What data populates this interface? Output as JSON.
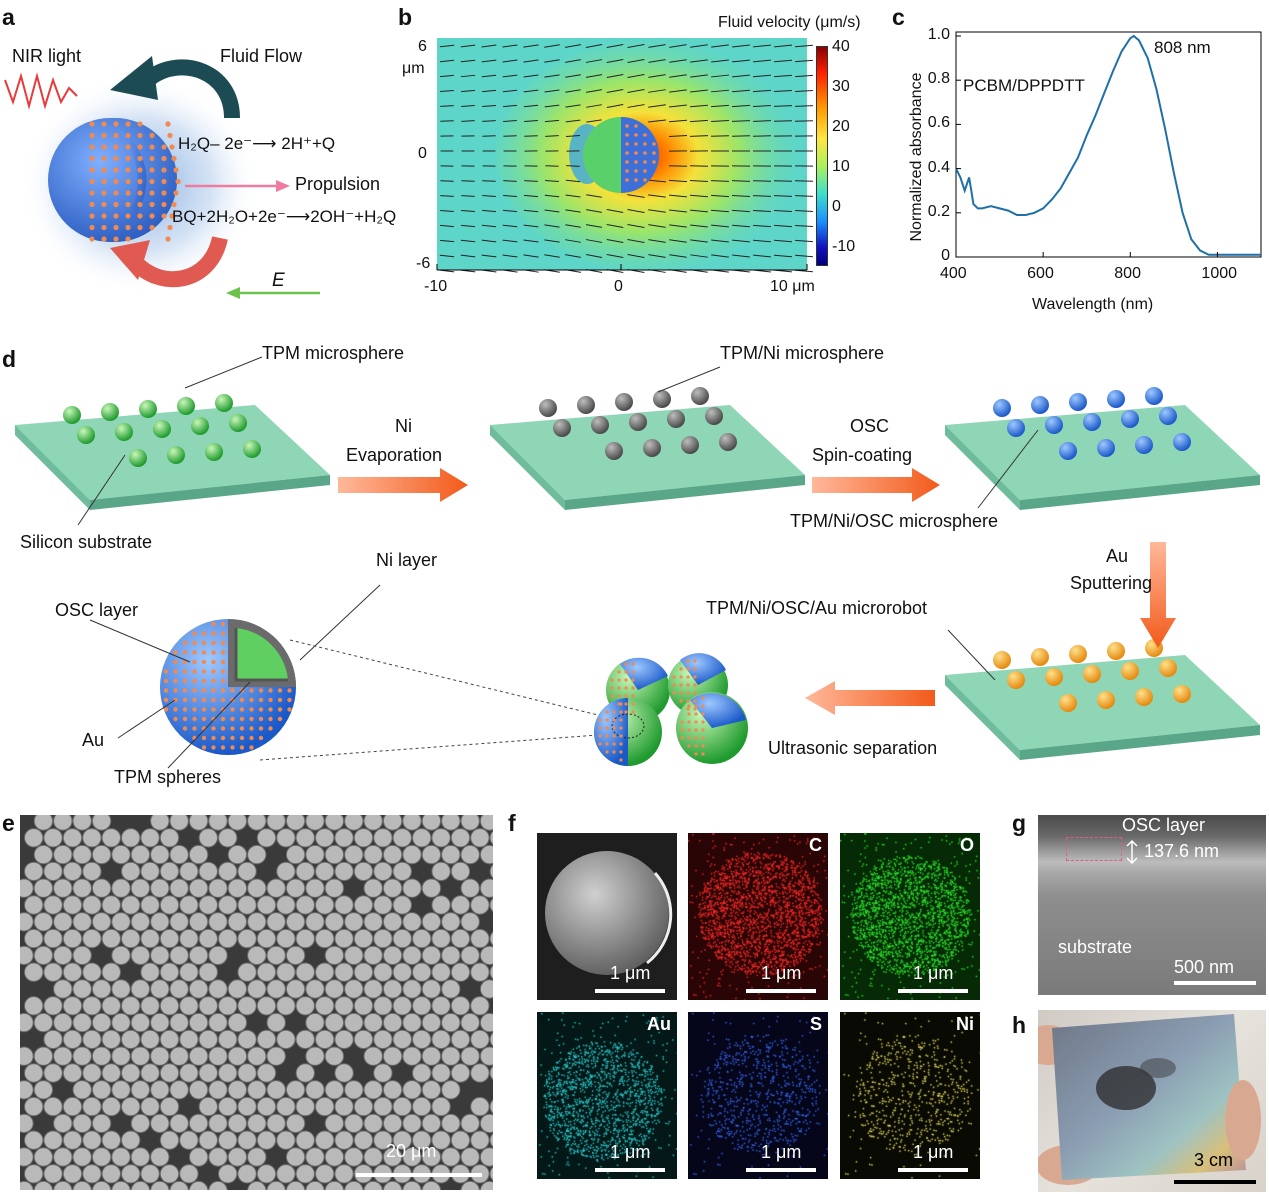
{
  "panels": {
    "a": {
      "label": "a",
      "nir": "NIR light",
      "flow": "Fluid Flow",
      "rxn1": "H₂Q– 2e⁻⟶ 2H⁺+Q",
      "propulsion": "Propulsion",
      "rxn2": "BQ+2H₂O+2e⁻⟶2OH⁻+H₂Q",
      "field": "E"
    },
    "b": {
      "label": "b",
      "colorbar_title": "Fluid velocity (μm/s)",
      "colorbar_ticks": [
        "40",
        "30",
        "20",
        "10",
        "0",
        "-10"
      ],
      "y_unit": "μm",
      "y_ticks": [
        "6",
        "0",
        "-6"
      ],
      "x_ticks": [
        "-10",
        "0",
        "10 μm"
      ]
    },
    "c": {
      "label": "c",
      "material": "PCBM/DPPDTT",
      "peak_label": "808 nm",
      "ylabel": "Normalized absorbance",
      "xlabel": "Wavelength (nm)",
      "y_ticks": [
        "1.0",
        "0.8",
        "0.6",
        "0.4",
        "0.2",
        "0"
      ],
      "x_ticks": [
        "400",
        "600",
        "800",
        "1000"
      ]
    },
    "d": {
      "label": "d",
      "tpm": "TPM microsphere",
      "silicon": "Silicon substrate",
      "ni_step_1": "Ni",
      "ni_step_2": "Evaporation",
      "tpm_ni": "TPM/Ni microsphere",
      "osc_step_1": "OSC",
      "osc_step_2": "Spin-coating",
      "tpm_ni_osc": "TPM/Ni/OSC microsphere",
      "au_step_1": "Au",
      "au_step_2": "Sputtering",
      "robot": "TPM/Ni/OSC/Au microrobot",
      "ultra": "Ultrasonic separation",
      "ni_layer": "Ni layer",
      "osc_layer": "OSC layer",
      "au": "Au",
      "tpm_spheres": "TPM spheres"
    },
    "e": {
      "label": "e",
      "scale": "20 μm"
    },
    "f": {
      "label": "f",
      "maps": [
        {
          "element": "",
          "scale": "1 μm"
        },
        {
          "element": "C",
          "scale": "1 μm"
        },
        {
          "element": "O",
          "scale": "1 μm"
        },
        {
          "element": "Au",
          "scale": "1 μm"
        },
        {
          "element": "S",
          "scale": "1 μm"
        },
        {
          "element": "Ni",
          "scale": "1 μm"
        }
      ]
    },
    "g": {
      "label": "g",
      "osc": "OSC layer",
      "thickness": "137.6 nm",
      "substrate": "substrate",
      "scale": "500 nm"
    },
    "h": {
      "label": "h",
      "scale": "3 cm"
    }
  },
  "chart_data": {
    "type": "line",
    "xlabel": "Wavelength (nm)",
    "ylabel": "Normalized absorbance",
    "xlim": [
      400,
      1100
    ],
    "ylim": [
      0,
      1.0
    ],
    "series": [
      {
        "name": "PCBM/DPPDTT",
        "x": [
          400,
          410,
          420,
          425,
          430,
          435,
          440,
          450,
          460,
          480,
          500,
          520,
          540,
          560,
          580,
          600,
          620,
          640,
          660,
          680,
          700,
          720,
          740,
          760,
          780,
          800,
          808,
          820,
          840,
          860,
          880,
          900,
          920,
          940,
          960,
          980,
          1000,
          1050,
          1100
        ],
        "y": [
          0.4,
          0.36,
          0.3,
          0.33,
          0.36,
          0.3,
          0.24,
          0.22,
          0.22,
          0.23,
          0.22,
          0.21,
          0.19,
          0.19,
          0.2,
          0.22,
          0.26,
          0.31,
          0.38,
          0.45,
          0.55,
          0.64,
          0.74,
          0.84,
          0.93,
          0.99,
          1.0,
          0.98,
          0.9,
          0.76,
          0.58,
          0.38,
          0.2,
          0.08,
          0.03,
          0.01,
          0.01,
          0.01,
          0.01
        ]
      }
    ]
  }
}
